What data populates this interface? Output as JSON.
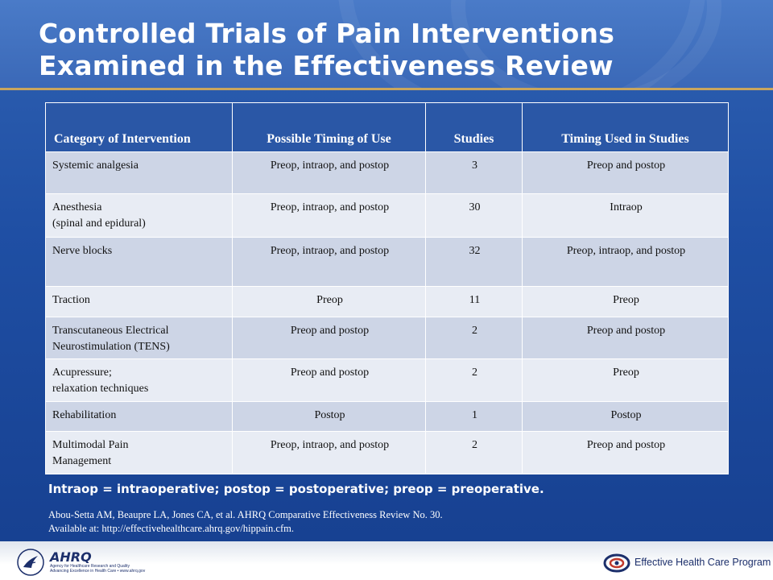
{
  "slide": {
    "title": "Controlled Trials of Pain Interventions Examined in the Effectiveness Review"
  },
  "table": {
    "headers": [
      "Category of Intervention",
      "Possible Timing  of Use",
      "Studies",
      "Timing Used in  Studies"
    ],
    "rows": [
      {
        "category": "Systemic analgesia",
        "category2": "",
        "possible": "Preop, intraop, and postop",
        "studies": "3",
        "used": "Preop and postop"
      },
      {
        "category": "Anesthesia",
        "category2": "(spinal and epidural)",
        "possible": "Preop, intraop, and postop",
        "studies": "30",
        "used": "Intraop"
      },
      {
        "category": "Nerve blocks",
        "category2": "",
        "possible": "Preop, intraop, and postop",
        "studies": "32",
        "used": "Preop, intraop, and postop"
      },
      {
        "category": "Traction",
        "category2": "",
        "possible": "Preop",
        "studies": "11",
        "used": "Preop"
      },
      {
        "category": "Transcutaneous Electrical",
        "category2": "Neurostimulation (TENS)",
        "possible": "Preop and postop",
        "studies": "2",
        "used": "Preop and postop"
      },
      {
        "category": "Acupressure;",
        "category2": "relaxation techniques",
        "possible": "Preop and postop",
        "studies": "2",
        "used": "Preop"
      },
      {
        "category": "Rehabilitation",
        "category2": "",
        "possible": "Postop",
        "studies": "1",
        "used": "Postop"
      },
      {
        "category": "Multimodal Pain",
        "category2": "Management",
        "possible": "Preop, intraop, and postop",
        "studies": "2",
        "used": "Preop and postop"
      }
    ]
  },
  "footnote": {
    "abbreviations": "Intraop = intraoperative; postop = postoperative; preop = preoperative.",
    "citation_line1": "Abou-Setta AM, Beaupre LA, Jones CA, et al. AHRQ Comparative Effectiveness Review No. 30.",
    "citation_line2": "Available at:  http://effectivehealthcare.ahrq.gov/hippain.cfm."
  },
  "footer": {
    "ahrq_mark": "AHRQ",
    "ahrq_sub_line1": "Agency for Healthcare Research and Quality",
    "ahrq_sub_line2": "Advancing Excellence in Health Care • www.ahrq.gov",
    "program_name": "Effective Health Care Program"
  },
  "colors": {
    "title_band": "#3a68b7",
    "background": "#1f4fa4",
    "header_fill": "#2a57a6",
    "row_odd": "#cdd5e6",
    "row_even": "#e8ecf4",
    "gold_rule": "#c9a65d"
  }
}
